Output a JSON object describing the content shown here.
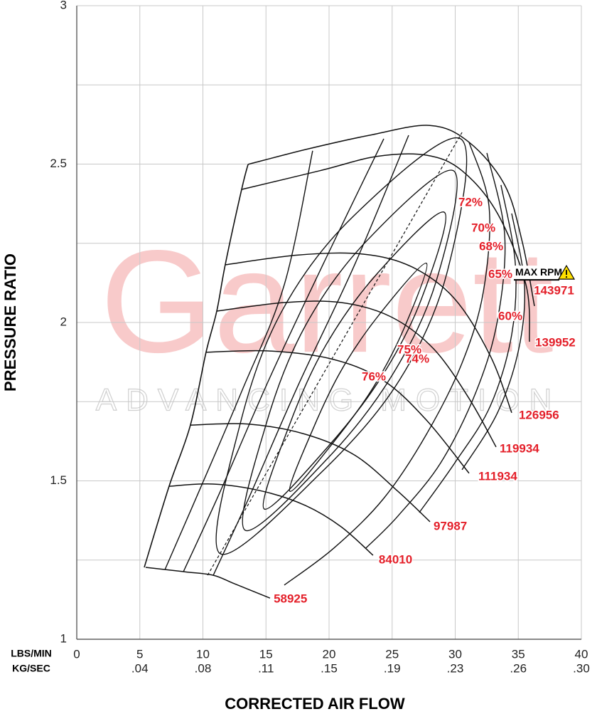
{
  "chart_data": {
    "type": "compressor_map",
    "xlabel": "CORRECTED AIR FLOW",
    "ylabel": "PRESSURE RATIO",
    "xunit_label": "LBS/MIN",
    "x2unit_label": "KG/SEC",
    "watermark": {
      "title": "Garrett",
      "tagline": "ADVANCING MOTION"
    },
    "max_rpm": {
      "text": "MAX RPM",
      "x": 34.76,
      "y": 2.157
    },
    "xlim": [
      0,
      40
    ],
    "ylim": [
      1,
      3
    ],
    "xticks": [
      0,
      5,
      10,
      15,
      20,
      25,
      30,
      35,
      40
    ],
    "x2ticks": [
      {
        "value": 5,
        "label": ".04"
      },
      {
        "value": 10,
        "label": ".08"
      },
      {
        "value": 15,
        "label": ".11"
      },
      {
        "value": 20,
        "label": ".15"
      },
      {
        "value": 25,
        "label": ".19"
      },
      {
        "value": 30,
        "label": ".23"
      },
      {
        "value": 35,
        "label": ".26"
      },
      {
        "value": 40,
        "label": ".30"
      }
    ],
    "yticks": [
      1,
      1.5,
      2,
      2.5,
      3
    ],
    "yminor_grid": [
      1.25,
      1.75,
      2.25,
      2.75
    ],
    "grid": true,
    "line_color": "#111111",
    "label_color": "#e4202a",
    "surge_line": {
      "x": [
        5.35,
        7.32,
        9.01,
        10.25,
        11.1,
        11.77,
        13.07,
        13.58
      ],
      "values": [
        1.227,
        1.483,
        1.676,
        1.906,
        2.036,
        2.182,
        2.42,
        2.499
      ]
    },
    "peak_efficiency_line": {
      "x": [
        10.37,
        30.54
      ],
      "values": [
        1.202,
        2.6
      ]
    },
    "speed_lines": [
      {
        "name": "58925",
        "x": [
          5.46,
          8.56,
          10.82,
          12.51,
          15.32
        ],
        "values": [
          1.227,
          1.213,
          1.202,
          1.175,
          1.13
        ],
        "label_x": 15.61,
        "label_y": 1.126
      },
      {
        "name": "84010",
        "x": [
          7.32,
          10.82,
          14.76,
          18.14,
          20.96,
          23.49
        ],
        "values": [
          1.483,
          1.49,
          1.467,
          1.422,
          1.355,
          1.265
        ],
        "label_x": 23.94,
        "label_y": 1.249
      },
      {
        "name": "97987",
        "x": [
          9.01,
          13.63,
          18.14,
          22.08,
          25.46,
          28.0
        ],
        "values": [
          1.676,
          1.679,
          1.647,
          1.58,
          1.467,
          1.371
        ],
        "label_x": 28.28,
        "label_y": 1.355
      },
      {
        "name": "111934",
        "x": [
          10.25,
          15.32,
          20.39,
          24.34,
          27.72,
          31.1
        ],
        "values": [
          1.906,
          1.91,
          1.883,
          1.816,
          1.692,
          1.524
        ],
        "label_x": 31.83,
        "label_y": 1.512
      },
      {
        "name": "119934",
        "x": [
          11.1,
          16.45,
          20.96,
          24.9,
          28.28,
          31.1,
          33.24
        ],
        "values": [
          2.036,
          2.063,
          2.063,
          2.018,
          1.917,
          1.76,
          1.607
        ],
        "label_x": 33.52,
        "label_y": 1.6
      },
      {
        "name": "126956",
        "x": [
          11.77,
          17.58,
          22.65,
          26.59,
          29.97,
          32.79,
          34.48
        ],
        "values": [
          2.182,
          2.213,
          2.216,
          2.175,
          2.074,
          1.894,
          1.715
        ],
        "label_x": 35.04,
        "label_y": 1.706
      },
      {
        "name": "139952",
        "x": [
          13.07,
          19.27,
          23.77,
          27.72,
          30.54,
          33.35,
          35.61,
          35.89
        ],
        "values": [
          2.42,
          2.479,
          2.524,
          2.528,
          2.479,
          2.344,
          2.119,
          1.939
        ],
        "label_x": 36.34,
        "label_y": 1.935
      },
      {
        "name": "143971",
        "x": [
          13.58,
          18.14,
          23.21,
          28.0,
          31.1,
          33.92,
          35.32,
          36.28
        ],
        "values": [
          2.499,
          2.546,
          2.591,
          2.622,
          2.569,
          2.434,
          2.254,
          2.052
        ],
        "label_x": 36.23,
        "label_y": 2.099
      }
    ],
    "efficiency_islands": [
      {
        "name": "76%",
        "closed": true,
        "x": [
          16.9,
          20.45,
          23.55,
          25.97,
          27.72,
          24.06,
          21.07,
          18.76
        ],
        "values": [
          1.467,
          1.627,
          1.798,
          1.984,
          2.187,
          2.029,
          1.856,
          1.667
        ],
        "label_x": 23.55,
        "label_y": 1.827
      },
      {
        "name": "75%",
        "closed": true,
        "x": [
          14.87,
          19.94,
          24.17,
          27.32,
          29.13,
          23.83,
          19.77,
          16.9
        ],
        "values": [
          1.411,
          1.609,
          1.829,
          2.074,
          2.348,
          2.155,
          1.93,
          1.681
        ],
        "label_x": 26.37,
        "label_y": 1.912
      },
      {
        "name": "74%",
        "closed": true,
        "x": [
          13.35,
          19.89,
          25.01,
          28.51,
          29.86,
          22.99,
          18.14,
          15.04
        ],
        "values": [
          1.344,
          1.571,
          1.834,
          2.133,
          2.479,
          2.258,
          1.991,
          1.683
        ],
        "label_x": 26.99,
        "label_y": 1.883
      },
      {
        "name": "72%",
        "closed": true,
        "x": [
          11.38,
          19.32,
          25.58,
          29.41,
          30.42,
          21.97,
          16.23,
          12.9
        ],
        "values": [
          1.27,
          1.524,
          1.818,
          2.166,
          2.58,
          2.337,
          2.034,
          1.672
        ],
        "label_x": 31.21,
        "label_y": 2.378
      },
      {
        "name": "70%",
        "closed": false,
        "x": [
          10.82,
          13.63,
          17.58,
          22.08,
          26.31,
          null,
          31.1,
          32.68,
          32.23,
          30.54,
          27.72,
          24.34,
          20.39,
          16.45
        ],
        "values": [
          1.202,
          1.445,
          1.804,
          2.187,
          2.591,
          null,
          2.569,
          2.366,
          2.097,
          1.872,
          1.647,
          1.445,
          1.288,
          1.171
        ],
        "label_x": 32.23,
        "label_y": 2.297
      },
      {
        "name": "68%",
        "closed": false,
        "x": [
          8.45,
          11.38,
          15.32,
          19.83,
          24.34,
          null,
          32.51,
          33.92,
          33.35,
          31.66,
          28.85,
          25.46,
          22.93
        ],
        "values": [
          1.213,
          1.467,
          1.827,
          2.209,
          2.58,
          null,
          2.535,
          2.276,
          2.007,
          1.782,
          1.557,
          1.389,
          1.288
        ],
        "label_x": 32.85,
        "label_y": 2.238
      },
      {
        "name": "65%",
        "closed": false,
        "x": [
          6.99,
          9.69,
          13.07,
          16.45,
          18.7,
          null,
          33.63,
          34.76,
          34.48,
          32.79,
          29.97,
          27.15
        ],
        "values": [
          1.22,
          1.467,
          1.782,
          2.119,
          2.542,
          null,
          2.434,
          2.187,
          1.962,
          1.737,
          1.557,
          1.4
        ],
        "label_x": 33.58,
        "label_y": 2.151
      },
      {
        "name": "60%",
        "closed": false,
        "x": [
          34.48,
          35.49,
          35.04,
          33.35,
          30.54
        ],
        "values": [
          2.344,
          2.119,
          1.917,
          1.715,
          1.535
        ],
        "label_x": 34.37,
        "label_y": 2.018
      }
    ]
  }
}
